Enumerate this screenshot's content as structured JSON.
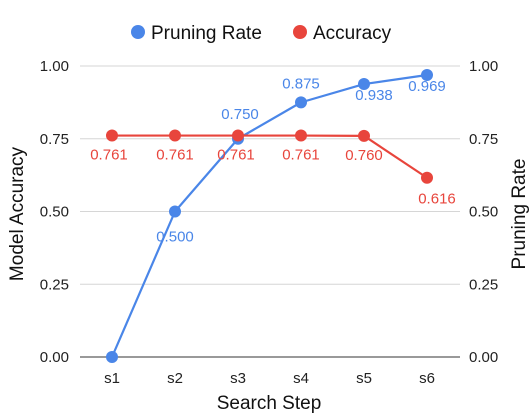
{
  "chart_data": {
    "type": "line",
    "title": "",
    "xlabel": "Search Step",
    "ylabel_left": "Model Accuracy",
    "ylabel_right": "Pruning Rate",
    "categories": [
      "s1",
      "s2",
      "s3",
      "s4",
      "s5",
      "s6"
    ],
    "ylim": [
      0,
      1
    ],
    "yticks": [
      "0.00",
      "0.25",
      "0.50",
      "0.75",
      "1.00"
    ],
    "grid": true,
    "legend_position": "top",
    "series": [
      {
        "name": "Pruning Rate",
        "color": "#4a86e8",
        "axis": "right",
        "values": [
          0,
          0.5,
          0.75,
          0.875,
          0.938,
          0.969
        ],
        "labels": [
          "",
          "0.500",
          "0.750",
          "0.875",
          "0.938",
          "0.969"
        ]
      },
      {
        "name": "Accuracy",
        "color": "#e8453c",
        "axis": "left",
        "values": [
          0.761,
          0.761,
          0.761,
          0.761,
          0.76,
          0.616
        ],
        "labels": [
          "0.761",
          "0.761",
          "0.761",
          "0.761",
          "0.760",
          "0.616"
        ]
      }
    ]
  }
}
